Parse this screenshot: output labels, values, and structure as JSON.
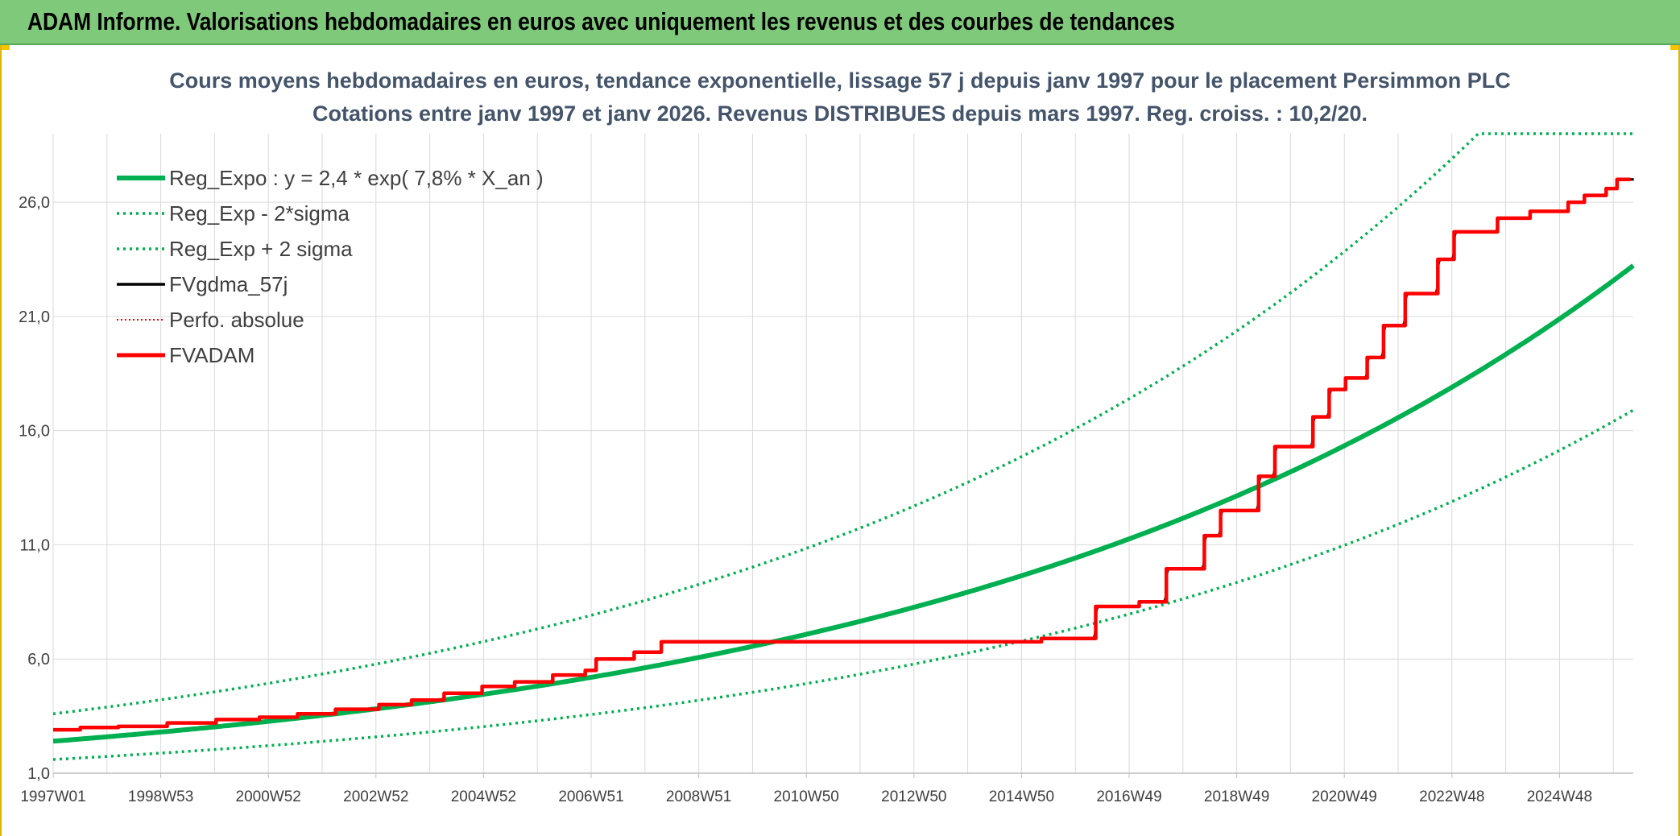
{
  "header": {
    "title": "ADAM Informe. Valorisations hebdomadaires en euros avec uniquement les revenus et des courbes de tendances"
  },
  "colors": {
    "header_bg": "#7fc97a",
    "green": "#00b050",
    "red": "#ff0000",
    "black": "#000000"
  },
  "chart_data": {
    "type": "line",
    "title": "Cours moyens hebdomadaires en euros, tendance exponentielle, lissage 57 j depuis janv 1997 pour le placement Persimmon PLC",
    "subtitle": "Cotations entre janv 1997 et janv 2026. Revenus DISTRIBUES depuis mars 1997. Reg. croiss. : 10,2/20.",
    "x_ticks": [
      "1997W01",
      "1998W53",
      "2000W52",
      "2002W52",
      "2004W52",
      "2006W51",
      "2008W51",
      "2010W50",
      "2012W50",
      "2014W50",
      "2016W49",
      "2018W49",
      "2020W49",
      "2022W48",
      "2024W48"
    ],
    "y_ticks": [
      "1,0",
      "6,0",
      "11,0",
      "16,0",
      "21,0",
      "26,0"
    ],
    "ylim": [
      1,
      29
    ],
    "xlim": [
      1997.0,
      2026.1
    ],
    "grid": true,
    "legend_position": "top-left",
    "legend": [
      {
        "label": "Reg_Expo : y = 2,4 * exp( 7,8% *  X_an )",
        "color": "#00b050",
        "style": "solid-thick"
      },
      {
        "label": "Reg_Exp - 2*sigma",
        "color": "#00b050",
        "style": "dotted"
      },
      {
        "label": "Reg_Exp + 2 sigma",
        "color": "#00b050",
        "style": "dotted"
      },
      {
        "label": "FVgdma_57j",
        "color": "#000000",
        "style": "solid"
      },
      {
        "label": "Perfo. absolue",
        "color": "#ff0000",
        "style": "dotted-thin"
      },
      {
        "label": "FVADAM",
        "color": "#ff0000",
        "style": "solid-thick"
      }
    ],
    "series": [
      {
        "name": "Reg_Expo : y = 2,4 * exp( 7,8% *  X_an )",
        "kind": "exp",
        "a": 2.4,
        "k": 0.078,
        "cap": null
      },
      {
        "name": "Reg_Exp - 2*sigma",
        "kind": "exp",
        "a": 1.6,
        "k": 0.081,
        "cap": null
      },
      {
        "name": "Reg_Exp + 2 sigma",
        "kind": "exp",
        "a": 3.6,
        "k": 0.0795,
        "cap": 29.0
      },
      {
        "name": "FVgdma_57j",
        "kind": "steps",
        "steps": [
          [
            1997.0,
            2.9
          ],
          [
            1997.5,
            3.0
          ],
          [
            1998.2,
            3.05
          ],
          [
            1999.1,
            3.2
          ],
          [
            2000.0,
            3.35
          ],
          [
            2000.8,
            3.45
          ],
          [
            2001.5,
            3.6
          ],
          [
            2002.2,
            3.8
          ],
          [
            2003.0,
            4.0
          ],
          [
            2003.6,
            4.2
          ],
          [
            2004.2,
            4.5
          ],
          [
            2004.9,
            4.8
          ],
          [
            2005.5,
            5.0
          ],
          [
            2006.2,
            5.3
          ],
          [
            2006.8,
            5.5
          ],
          [
            2007.0,
            6.0
          ],
          [
            2007.7,
            6.3
          ],
          [
            2008.2,
            6.75
          ],
          [
            2015.2,
            6.9
          ],
          [
            2016.2,
            8.3
          ],
          [
            2017.0,
            8.5
          ],
          [
            2017.5,
            9.95
          ],
          [
            2018.2,
            11.4
          ],
          [
            2018.5,
            12.5
          ],
          [
            2019.2,
            14.0
          ],
          [
            2019.5,
            15.3
          ],
          [
            2020.2,
            16.6
          ],
          [
            2020.5,
            17.8
          ],
          [
            2020.8,
            18.3
          ],
          [
            2021.2,
            19.2
          ],
          [
            2021.5,
            20.6
          ],
          [
            2021.9,
            22.0
          ],
          [
            2022.5,
            23.5
          ],
          [
            2022.8,
            24.7
          ],
          [
            2023.6,
            25.3
          ],
          [
            2024.2,
            25.6
          ],
          [
            2024.9,
            26.0
          ],
          [
            2025.2,
            26.3
          ],
          [
            2025.6,
            26.6
          ],
          [
            2025.8,
            27.0
          ],
          [
            2026.05,
            27.0
          ]
        ]
      },
      {
        "name": "Perfo. absolue",
        "kind": "steps",
        "ref": "FVgdma_57j"
      },
      {
        "name": "FVADAM",
        "kind": "steps",
        "ref": "FVgdma_57j"
      }
    ]
  }
}
